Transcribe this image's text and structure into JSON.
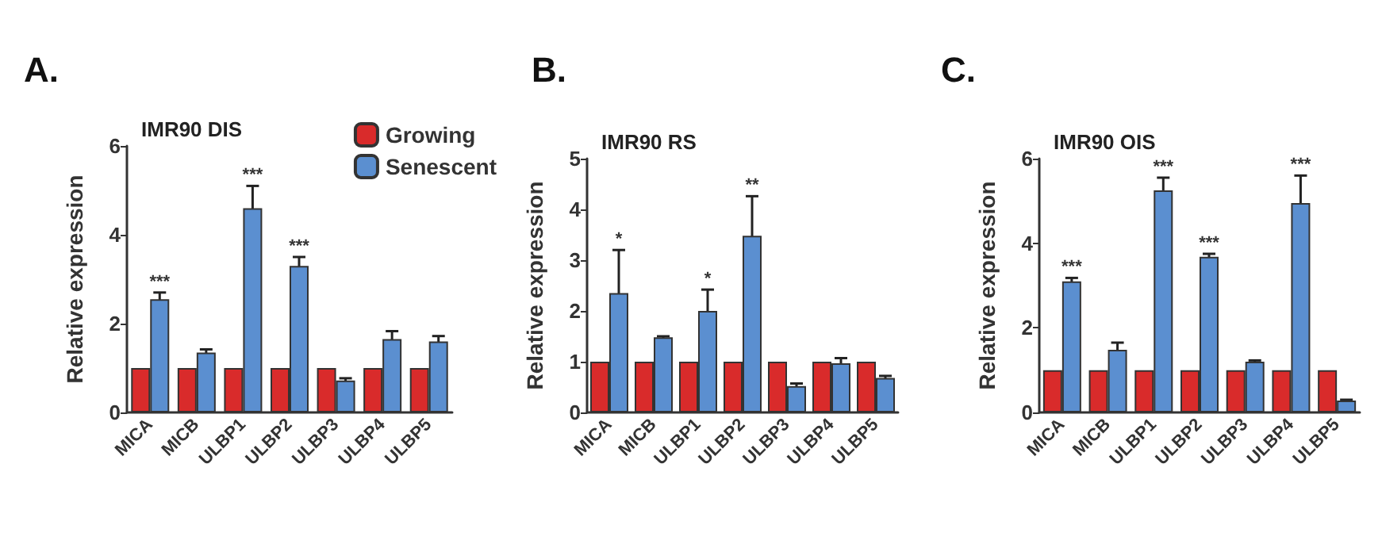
{
  "chart_data": [
    {
      "type": "bar",
      "title": "A.",
      "subtitle": "IMR90 DIS",
      "ylabel": "Relative expression",
      "categories": [
        "MICA",
        "MICB",
        "ULBP1",
        "ULBP2",
        "ULBP3",
        "ULBP4",
        "ULBP5"
      ],
      "series": [
        {
          "name": "Growing",
          "color": "#d92b2b",
          "values": [
            1,
            1,
            1,
            1,
            1,
            1,
            1
          ]
        },
        {
          "name": "Senescent",
          "color": "#5b8fd0",
          "values": [
            2.55,
            1.35,
            4.6,
            3.3,
            0.72,
            1.65,
            1.6
          ],
          "errors": [
            0.15,
            0.07,
            0.5,
            0.2,
            0.05,
            0.18,
            0.12
          ]
        }
      ],
      "ylim": [
        0,
        6
      ],
      "yticks": [
        0,
        2,
        4,
        6
      ],
      "grid": false,
      "legend": "top right",
      "annotations": [
        {
          "text": "***",
          "x": "MICA",
          "y": 2.7
        },
        {
          "text": "***",
          "x": "ULBP1",
          "y": 5.1
        },
        {
          "text": "***",
          "x": "ULBP2",
          "y": 3.5
        }
      ]
    },
    {
      "type": "bar",
      "title": "B.",
      "subtitle": "IMR90 RS",
      "ylabel": "Relative expression",
      "categories": [
        "MICA",
        "MICB",
        "ULBP1",
        "ULBP2",
        "ULBP3",
        "ULBP4",
        "ULBP5"
      ],
      "series": [
        {
          "color": "#d92b2b",
          "values": [
            1,
            1,
            1,
            1,
            1,
            1,
            1
          ]
        },
        {
          "color": "#5b8fd0",
          "values": [
            2.35,
            1.48,
            2.0,
            3.48,
            0.52,
            0.97,
            0.68
          ],
          "errors": [
            0.85,
            0.02,
            0.42,
            0.78,
            0.05,
            0.1,
            0.04
          ]
        }
      ],
      "ylim": [
        0,
        5
      ],
      "yticks": [
        0,
        1,
        2,
        3,
        4,
        5
      ],
      "grid": false,
      "legend": false,
      "annotations": [
        {
          "text": "*",
          "x": "MICA",
          "y": 3.2
        },
        {
          "text": "*",
          "x": "ULBP1",
          "y": 2.42
        },
        {
          "text": "**",
          "x": "ULBP2",
          "y": 4.26
        }
      ]
    },
    {
      "type": "bar",
      "title": "C.",
      "subtitle": "IMR90 OIS",
      "ylabel": "Relative expression",
      "categories": [
        "MICA",
        "MICB",
        "ULBP1",
        "ULBP2",
        "ULBP3",
        "ULBP4",
        "ULBP5"
      ],
      "series": [
        {
          "color": "#d92b2b",
          "values": [
            1,
            1,
            1,
            1,
            1,
            1,
            1
          ]
        },
        {
          "color": "#5b8fd0",
          "values": [
            3.1,
            1.48,
            5.25,
            3.68,
            1.2,
            4.95,
            0.28
          ],
          "errors": [
            0.08,
            0.17,
            0.3,
            0.07,
            0.03,
            0.65,
            0.02
          ]
        }
      ],
      "ylim": [
        0,
        6
      ],
      "yticks": [
        0,
        2,
        4,
        6
      ],
      "grid": false,
      "legend": false,
      "annotations": [
        {
          "text": "***",
          "x": "MICA",
          "y": 3.18
        },
        {
          "text": "***",
          "x": "ULBP1",
          "y": 5.55
        },
        {
          "text": "***",
          "x": "ULBP2",
          "y": 3.75
        },
        {
          "text": "***",
          "x": "ULBP4",
          "y": 5.6
        }
      ]
    }
  ]
}
